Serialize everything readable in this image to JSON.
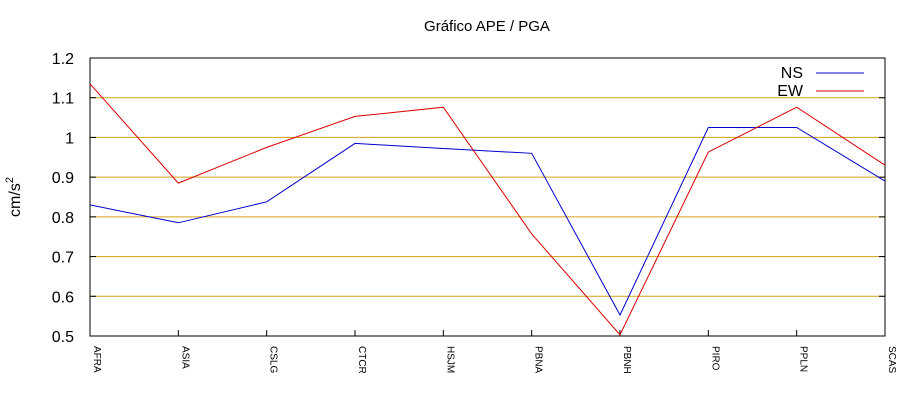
{
  "chart_data": {
    "type": "line",
    "title": "Gráfico  APE / PGA",
    "xlabel": "",
    "ylabel": "cm/s",
    "ylabel_superscript": "2",
    "categories": [
      "AFRA",
      "ASIA",
      "CSLG",
      "CTCR",
      "HSJM",
      "PBNA",
      "PBNH",
      "PIRO",
      "PPLN",
      "SCAS"
    ],
    "ylim": [
      0.5,
      1.2
    ],
    "yticks": [
      "0.5",
      "0.6",
      "0.7",
      "0.8",
      "0.9",
      "1",
      "1.1",
      "1.2"
    ],
    "grid": "horizontal",
    "grid_color": "#d4a017",
    "legend_position": "top-right",
    "series": [
      {
        "name": "NS",
        "color": "#0000cc",
        "values": [
          0.83,
          0.785,
          0.838,
          0.985,
          0.972,
          0.96,
          0.553,
          1.025,
          1.025,
          0.89
        ]
      },
      {
        "name": "EW",
        "color": "#dd0000",
        "values": [
          1.135,
          0.885,
          0.975,
          1.053,
          1.076,
          0.757,
          0.503,
          0.963,
          1.076,
          0.93
        ]
      }
    ]
  }
}
